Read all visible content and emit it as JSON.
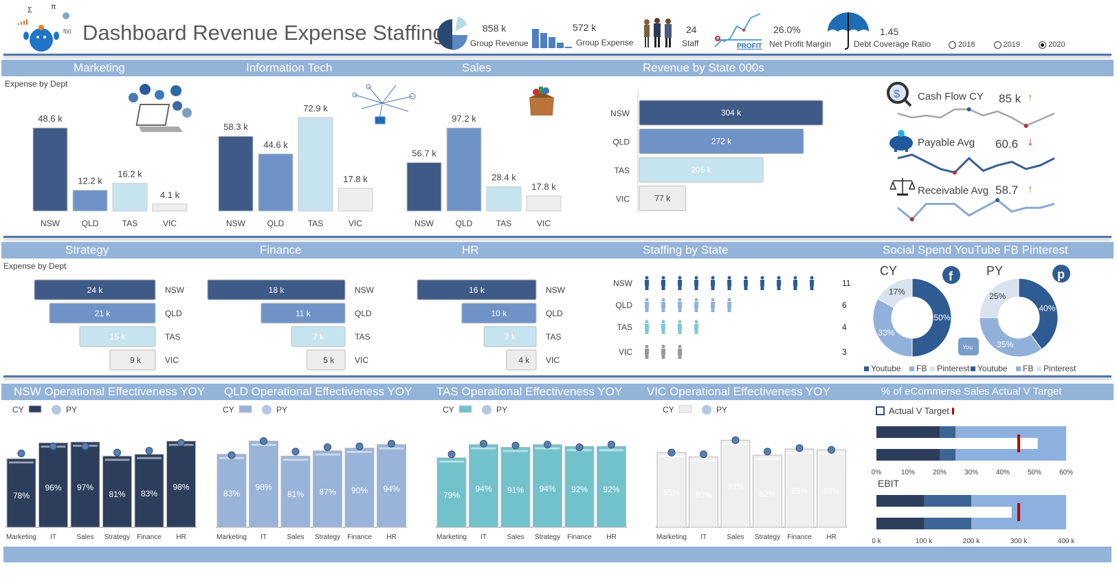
{
  "header": {
    "title": "Dashboard Revenue Expense Staffing",
    "kpis": [
      {
        "value": "858 k",
        "label": "Group Revenue",
        "icon": "pie-chart-icon"
      },
      {
        "value": "572 k",
        "label": "Group Expense",
        "icon": "bar-chart-icon"
      },
      {
        "value": "24",
        "label": "Staff",
        "icon": "people-icon"
      },
      {
        "value": "26.0%",
        "label": "Net Profit Margin",
        "icon": "profit-chart-icon"
      },
      {
        "value": "1.45",
        "label": "Debt Coverage Ratio",
        "icon": "umbrella-icon"
      }
    ],
    "years": [
      {
        "label": "2018",
        "selected": false
      },
      {
        "label": "2019",
        "selected": false
      },
      {
        "label": "2020",
        "selected": true
      }
    ]
  },
  "colors": {
    "NSW": "#3f5a87",
    "QLD": "#6f93c6",
    "TAS": "#c6e4ef",
    "VIC": "#ededed",
    "band": "#94b3d9",
    "target": "#c00000"
  },
  "bands": {
    "row1": [
      "Marketing",
      "Information Tech",
      "Sales",
      "Revenue by State 000s"
    ],
    "row2": [
      "Strategy",
      "Finance",
      "HR",
      "Staffing by State",
      "Social Spend YouTube FB Pinterest"
    ],
    "row3": [
      "NSW Operational Effectiveness YOY",
      "QLD Operational Effectiveness YOY",
      "TAS Operational Effectiveness YOY",
      "VIC Operational Effectiveness YOY",
      "% of eCommerse Sales Actual V Target"
    ]
  },
  "expense_label": "Expense by Dept",
  "chart_data": [
    {
      "type": "bar",
      "id": "marketing",
      "categories": [
        "NSW",
        "QLD",
        "TAS",
        "VIC"
      ],
      "values": [
        48.6,
        12.2,
        16.2,
        4.1
      ],
      "labels": [
        "48.6 k",
        "12.2 k",
        "16.2 k",
        "4.1 k"
      ]
    },
    {
      "type": "bar",
      "id": "it",
      "categories": [
        "NSW",
        "QLD",
        "TAS",
        "VIC"
      ],
      "values": [
        58.3,
        44.6,
        72.9,
        17.8
      ],
      "labels": [
        "58.3 k",
        "44.6 k",
        "72.9 k",
        "17.8 k"
      ]
    },
    {
      "type": "bar",
      "id": "sales",
      "categories": [
        "NSW",
        "QLD",
        "TAS",
        "VIC"
      ],
      "values": [
        56.7,
        97.2,
        28.4,
        17.8
      ],
      "labels": [
        "56.7 k",
        "97.2 k",
        "28.4 k",
        "17.8 k"
      ]
    },
    {
      "type": "bar",
      "id": "revenue-by-state",
      "orientation": "horizontal",
      "categories": [
        "NSW",
        "QLD",
        "TAS",
        "VIC"
      ],
      "values": [
        304,
        272,
        205,
        77
      ],
      "labels": [
        "304 k",
        "272 k",
        "205 k",
        "77 k"
      ]
    },
    {
      "type": "bar",
      "id": "strategy",
      "orientation": "horizontal",
      "categories": [
        "NSW",
        "QLD",
        "TAS",
        "VIC"
      ],
      "values": [
        24,
        21,
        15,
        9
      ],
      "labels": [
        "24 k",
        "21 k",
        "15 k",
        "9 k"
      ]
    },
    {
      "type": "bar",
      "id": "finance",
      "orientation": "horizontal",
      "categories": [
        "NSW",
        "QLD",
        "TAS",
        "VIC"
      ],
      "values": [
        18,
        11,
        7,
        5
      ],
      "labels": [
        "18 k",
        "11 k",
        "7 k",
        "5 k"
      ]
    },
    {
      "type": "bar",
      "id": "hr",
      "orientation": "horizontal",
      "categories": [
        "NSW",
        "QLD",
        "TAS",
        "VIC"
      ],
      "values": [
        16,
        10,
        7,
        4
      ],
      "labels": [
        "16 k",
        "10 k",
        "7 k",
        "4 k"
      ]
    },
    {
      "type": "pictograph",
      "id": "staffing",
      "categories": [
        "NSW",
        "QLD",
        "TAS",
        "VIC"
      ],
      "values": [
        11,
        6,
        4,
        3
      ]
    },
    {
      "type": "pie",
      "id": "social-cy",
      "title": "CY",
      "categories": [
        "Youtube",
        "FB",
        "Pinterest"
      ],
      "values": [
        50,
        33,
        17
      ],
      "colors": [
        "#2f5b93",
        "#92b1da",
        "#d9e2ef"
      ]
    },
    {
      "type": "pie",
      "id": "social-py",
      "title": "PY",
      "categories": [
        "Youtube",
        "FB",
        "Pinterest"
      ],
      "values": [
        40,
        35,
        25
      ],
      "colors": [
        "#2f5b93",
        "#92b1da",
        "#d9e2ef"
      ]
    },
    {
      "type": "bar",
      "id": "opex-nsw",
      "legend": [
        "CY",
        "PY"
      ],
      "color": "#2c3e5c",
      "text": "#ffffff",
      "categories": [
        "Marketing",
        "IT",
        "Sales",
        "Strategy",
        "Finance",
        "HR"
      ],
      "cy": [
        78,
        96,
        97,
        81,
        83,
        98
      ],
      "py": [
        84,
        92,
        92,
        85,
        87,
        96
      ]
    },
    {
      "type": "bar",
      "id": "opex-qld",
      "legend": [
        "CY",
        "PY"
      ],
      "color": "#9ab3d8",
      "text": "#ffffff",
      "categories": [
        "Marketing",
        "IT",
        "Sales",
        "Strategy",
        "Finance",
        "HR"
      ],
      "cy": [
        83,
        98,
        81,
        87,
        90,
        94
      ],
      "py": [
        82,
        98,
        86,
        91,
        92,
        95
      ]
    },
    {
      "type": "bar",
      "id": "opex-tas",
      "legend": [
        "CY",
        "PY"
      ],
      "color": "#72c2cc",
      "text": "#ffffff",
      "categories": [
        "Marketing",
        "IT",
        "Sales",
        "Strategy",
        "Finance",
        "HR"
      ],
      "cy": [
        79,
        94,
        91,
        94,
        92,
        92
      ],
      "py": [
        83,
        95,
        93,
        94,
        91,
        94
      ]
    },
    {
      "type": "bar",
      "id": "opex-vic",
      "legend": [
        "CY",
        "PY"
      ],
      "color": "#efefef",
      "text": "#ffffff",
      "categories": [
        "Marketing",
        "IT",
        "Sales",
        "Strategy",
        "Finance",
        "HR"
      ],
      "cy": [
        85,
        80,
        99,
        82,
        89,
        88
      ],
      "py": [
        85,
        83,
        99,
        86,
        90,
        88
      ]
    },
    {
      "type": "bullet",
      "id": "ecommerce",
      "legend": "Actual V Target",
      "ticks": [
        "0%",
        "10%",
        "20%",
        "30%",
        "40%",
        "50%",
        "60%"
      ],
      "xlim": [
        0,
        60
      ],
      "bands": [
        20,
        25,
        60
      ],
      "actual": 51,
      "target": 45
    },
    {
      "type": "bullet",
      "id": "ebit",
      "title": "EBIT",
      "ticks": [
        "0 k",
        "100 k",
        "200 k",
        "300 k",
        "400 k"
      ],
      "xlim": [
        0,
        400
      ],
      "bands": [
        100,
        200,
        400
      ],
      "actual": 285,
      "target": 300
    },
    {
      "type": "line",
      "id": "cash-flow",
      "values": [
        5,
        4,
        4.5,
        4,
        6,
        6,
        4.5,
        5.5,
        4,
        2,
        3.5,
        5
      ],
      "low_index": 9,
      "high_index": 5,
      "color": "#a6a6a6"
    },
    {
      "type": "line",
      "id": "payable",
      "values": [
        6,
        7,
        5,
        3,
        2,
        6,
        2.5,
        4,
        5,
        3,
        4,
        6
      ],
      "low_index": 4,
      "color": "#3a5f90"
    },
    {
      "type": "line",
      "id": "receivable",
      "values": [
        4,
        1,
        5,
        5,
        5,
        2,
        4,
        6,
        3,
        4,
        4,
        5
      ],
      "low_index": 1,
      "high_index": 7,
      "color": "#8aa9d2"
    }
  ],
  "sparkline_kpis": [
    {
      "label": "Cash Flow CY",
      "value": "85 k",
      "trend": "up",
      "icon": "dollar-magnifier-icon"
    },
    {
      "label": "Payable Avg",
      "value": "60.6",
      "trend": "down",
      "icon": "piggy-bank-icon"
    },
    {
      "label": "Receivable Avg",
      "value": "58.7",
      "trend": "up",
      "icon": "scales-icon"
    }
  ],
  "trend_arrows": {
    "up": "↑",
    "down": "↓"
  }
}
